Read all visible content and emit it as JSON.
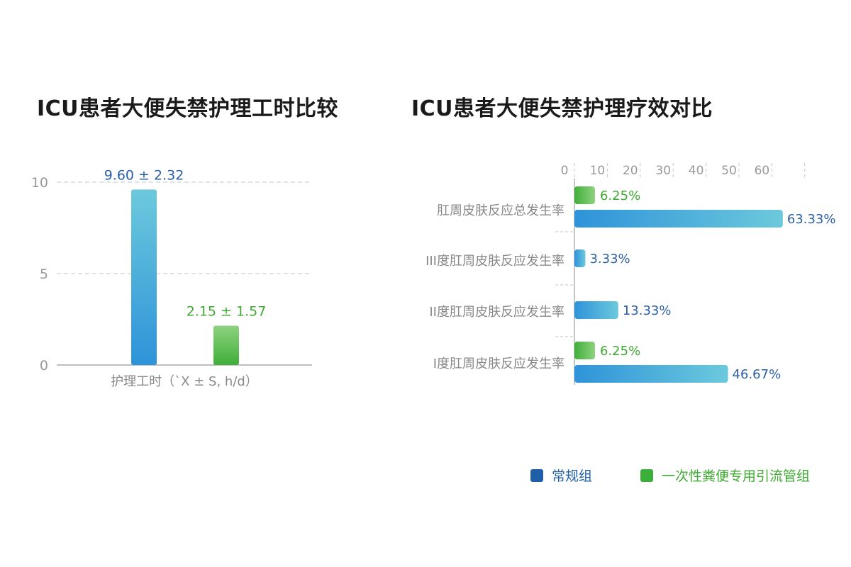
{
  "colors": {
    "blue_text": "#2b5fa6",
    "green_text": "#3faa33",
    "blue_bar_a": "#2e93d9",
    "blue_bar_b": "#6cc9dc",
    "green_bar_a": "#3fae3a",
    "green_bar_b": "#8fd27f",
    "legend_blue": "#1f5fa8",
    "legend_green": "#3caf3a",
    "axis_text": "#999999",
    "category_text": "#888888",
    "grid": "#c4c4c4"
  },
  "legend": {
    "group_a": "常规组",
    "group_b": "一次性粪便专用引流管组"
  },
  "chart_data": [
    {
      "type": "bar",
      "title": "ICU患者大便失禁护理工时比较",
      "xlabel": "护理工时（`X ± S, h/d）",
      "ylim": [
        0,
        10
      ],
      "yticks": [
        "0",
        "5",
        "10"
      ],
      "grid": true,
      "series": [
        {
          "name": "常规组",
          "values": [
            9.6
          ],
          "label": "9.60 ± 2.32"
        },
        {
          "name": "一次性粪便专用引流管组",
          "values": [
            2.15
          ],
          "label": "2.15 ± 1.57"
        }
      ]
    },
    {
      "type": "bar",
      "orientation": "horizontal",
      "title": "ICU患者大便失禁护理疗效对比",
      "xlim": [
        0,
        70
      ],
      "xticks": [
        "0",
        "10",
        "20",
        "30",
        "40",
        "50",
        "60"
      ],
      "categories": [
        "肛周皮肤反应总发生率",
        "III度肛周皮肤反应发生率",
        "II度肛周皮肤反应发生率",
        "I度肛周皮肤反应发生率"
      ],
      "series": [
        {
          "name": "一次性粪便专用引流管组",
          "values": [
            6.25,
            null,
            null,
            6.25
          ],
          "labels": [
            "6.25%",
            "",
            "",
            "6.25%"
          ]
        },
        {
          "name": "常规组",
          "values": [
            63.33,
            3.33,
            13.33,
            46.67
          ],
          "labels": [
            "63.33%",
            "3.33%",
            "13.33%",
            "46.67%"
          ]
        }
      ]
    }
  ]
}
